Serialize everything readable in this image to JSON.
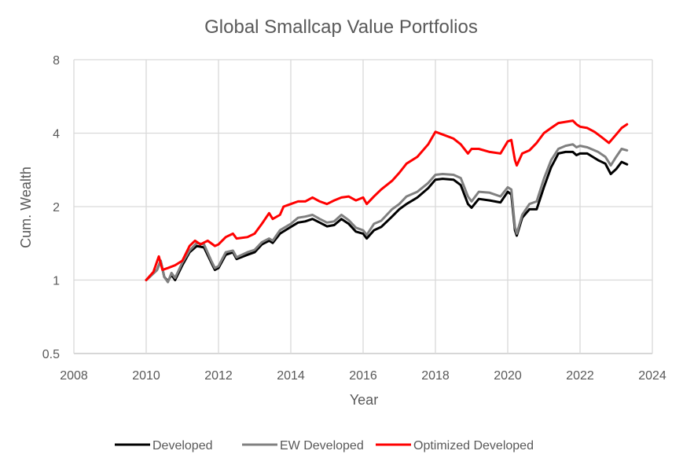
{
  "chart_data": {
    "type": "line",
    "title": "Global Smallcap Value Portfolios",
    "xlabel": "Year",
    "ylabel": "Cum. Wealth",
    "y_scale": "log2",
    "xlim": [
      2008,
      2024
    ],
    "ylim": [
      0.5,
      8
    ],
    "x_ticks": [
      "2008",
      "2010",
      "2012",
      "2014",
      "2016",
      "2018",
      "2020",
      "2022",
      "2024"
    ],
    "y_ticks": [
      "0.5",
      "1",
      "2",
      "4",
      "8"
    ],
    "grid": true,
    "legend_position": "bottom",
    "series": [
      {
        "name": "Developed",
        "color": "#000000",
        "points": [
          [
            2010.0,
            1.0
          ],
          [
            2010.3,
            1.1
          ],
          [
            2010.4,
            1.2
          ],
          [
            2010.5,
            1.03
          ],
          [
            2010.6,
            0.99
          ],
          [
            2010.7,
            1.05
          ],
          [
            2010.8,
            1.0
          ],
          [
            2011.0,
            1.15
          ],
          [
            2011.2,
            1.3
          ],
          [
            2011.4,
            1.38
          ],
          [
            2011.6,
            1.36
          ],
          [
            2011.8,
            1.18
          ],
          [
            2011.9,
            1.1
          ],
          [
            2012.0,
            1.12
          ],
          [
            2012.2,
            1.27
          ],
          [
            2012.4,
            1.3
          ],
          [
            2012.5,
            1.22
          ],
          [
            2012.8,
            1.27
          ],
          [
            2013.0,
            1.3
          ],
          [
            2013.2,
            1.4
          ],
          [
            2013.4,
            1.45
          ],
          [
            2013.5,
            1.42
          ],
          [
            2013.7,
            1.55
          ],
          [
            2014.0,
            1.65
          ],
          [
            2014.2,
            1.72
          ],
          [
            2014.4,
            1.74
          ],
          [
            2014.6,
            1.78
          ],
          [
            2014.8,
            1.72
          ],
          [
            2015.0,
            1.66
          ],
          [
            2015.2,
            1.68
          ],
          [
            2015.4,
            1.78
          ],
          [
            2015.6,
            1.7
          ],
          [
            2015.8,
            1.58
          ],
          [
            2016.0,
            1.55
          ],
          [
            2016.1,
            1.48
          ],
          [
            2016.3,
            1.6
          ],
          [
            2016.5,
            1.65
          ],
          [
            2016.8,
            1.82
          ],
          [
            2017.0,
            1.95
          ],
          [
            2017.2,
            2.05
          ],
          [
            2017.5,
            2.18
          ],
          [
            2017.8,
            2.38
          ],
          [
            2018.0,
            2.58
          ],
          [
            2018.2,
            2.6
          ],
          [
            2018.5,
            2.58
          ],
          [
            2018.7,
            2.45
          ],
          [
            2018.9,
            2.05
          ],
          [
            2019.0,
            1.98
          ],
          [
            2019.2,
            2.15
          ],
          [
            2019.5,
            2.12
          ],
          [
            2019.8,
            2.08
          ],
          [
            2020.0,
            2.3
          ],
          [
            2020.1,
            2.24
          ],
          [
            2020.2,
            1.6
          ],
          [
            2020.25,
            1.52
          ],
          [
            2020.4,
            1.8
          ],
          [
            2020.6,
            1.95
          ],
          [
            2020.8,
            1.95
          ],
          [
            2021.0,
            2.4
          ],
          [
            2021.2,
            2.9
          ],
          [
            2021.4,
            3.3
          ],
          [
            2021.6,
            3.35
          ],
          [
            2021.8,
            3.35
          ],
          [
            2021.9,
            3.25
          ],
          [
            2022.0,
            3.3
          ],
          [
            2022.2,
            3.3
          ],
          [
            2022.5,
            3.1
          ],
          [
            2022.7,
            3.0
          ],
          [
            2022.85,
            2.72
          ],
          [
            2023.0,
            2.85
          ],
          [
            2023.15,
            3.05
          ],
          [
            2023.3,
            2.98
          ]
        ]
      },
      {
        "name": "EW Developed",
        "color": "#808080",
        "points": [
          [
            2010.0,
            1.0
          ],
          [
            2010.3,
            1.1
          ],
          [
            2010.4,
            1.2
          ],
          [
            2010.5,
            1.03
          ],
          [
            2010.6,
            0.98
          ],
          [
            2010.7,
            1.07
          ],
          [
            2010.8,
            1.02
          ],
          [
            2011.0,
            1.18
          ],
          [
            2011.2,
            1.32
          ],
          [
            2011.4,
            1.42
          ],
          [
            2011.6,
            1.4
          ],
          [
            2011.8,
            1.2
          ],
          [
            2011.9,
            1.12
          ],
          [
            2012.0,
            1.14
          ],
          [
            2012.2,
            1.3
          ],
          [
            2012.4,
            1.32
          ],
          [
            2012.5,
            1.24
          ],
          [
            2012.8,
            1.3
          ],
          [
            2013.0,
            1.33
          ],
          [
            2013.2,
            1.43
          ],
          [
            2013.4,
            1.48
          ],
          [
            2013.5,
            1.45
          ],
          [
            2013.7,
            1.6
          ],
          [
            2014.0,
            1.7
          ],
          [
            2014.2,
            1.8
          ],
          [
            2014.4,
            1.82
          ],
          [
            2014.6,
            1.85
          ],
          [
            2014.8,
            1.78
          ],
          [
            2015.0,
            1.72
          ],
          [
            2015.2,
            1.74
          ],
          [
            2015.4,
            1.85
          ],
          [
            2015.6,
            1.76
          ],
          [
            2015.8,
            1.64
          ],
          [
            2016.0,
            1.6
          ],
          [
            2016.1,
            1.53
          ],
          [
            2016.3,
            1.7
          ],
          [
            2016.5,
            1.75
          ],
          [
            2016.8,
            1.95
          ],
          [
            2017.0,
            2.05
          ],
          [
            2017.2,
            2.2
          ],
          [
            2017.5,
            2.3
          ],
          [
            2017.8,
            2.5
          ],
          [
            2018.0,
            2.7
          ],
          [
            2018.2,
            2.72
          ],
          [
            2018.5,
            2.7
          ],
          [
            2018.7,
            2.62
          ],
          [
            2018.9,
            2.2
          ],
          [
            2019.0,
            2.1
          ],
          [
            2019.2,
            2.3
          ],
          [
            2019.5,
            2.28
          ],
          [
            2019.8,
            2.2
          ],
          [
            2020.0,
            2.4
          ],
          [
            2020.1,
            2.35
          ],
          [
            2020.2,
            1.65
          ],
          [
            2020.25,
            1.55
          ],
          [
            2020.4,
            1.85
          ],
          [
            2020.6,
            2.05
          ],
          [
            2020.8,
            2.1
          ],
          [
            2021.0,
            2.6
          ],
          [
            2021.2,
            3.1
          ],
          [
            2021.4,
            3.45
          ],
          [
            2021.6,
            3.55
          ],
          [
            2021.8,
            3.6
          ],
          [
            2021.9,
            3.5
          ],
          [
            2022.0,
            3.55
          ],
          [
            2022.2,
            3.5
          ],
          [
            2022.5,
            3.35
          ],
          [
            2022.7,
            3.2
          ],
          [
            2022.85,
            2.95
          ],
          [
            2023.0,
            3.2
          ],
          [
            2023.15,
            3.45
          ],
          [
            2023.3,
            3.4
          ]
        ]
      },
      {
        "name": "Optimized Developed",
        "color": "#ff0000",
        "points": [
          [
            2010.0,
            1.0
          ],
          [
            2010.2,
            1.08
          ],
          [
            2010.35,
            1.25
          ],
          [
            2010.45,
            1.1
          ],
          [
            2010.6,
            1.12
          ],
          [
            2010.8,
            1.15
          ],
          [
            2011.0,
            1.2
          ],
          [
            2011.2,
            1.38
          ],
          [
            2011.35,
            1.45
          ],
          [
            2011.5,
            1.4
          ],
          [
            2011.7,
            1.45
          ],
          [
            2011.9,
            1.38
          ],
          [
            2012.0,
            1.4
          ],
          [
            2012.2,
            1.5
          ],
          [
            2012.4,
            1.55
          ],
          [
            2012.5,
            1.48
          ],
          [
            2012.8,
            1.5
          ],
          [
            2013.0,
            1.55
          ],
          [
            2013.2,
            1.7
          ],
          [
            2013.4,
            1.88
          ],
          [
            2013.5,
            1.78
          ],
          [
            2013.7,
            1.85
          ],
          [
            2013.8,
            2.0
          ],
          [
            2014.0,
            2.05
          ],
          [
            2014.2,
            2.1
          ],
          [
            2014.4,
            2.1
          ],
          [
            2014.6,
            2.18
          ],
          [
            2014.8,
            2.1
          ],
          [
            2015.0,
            2.05
          ],
          [
            2015.2,
            2.12
          ],
          [
            2015.4,
            2.18
          ],
          [
            2015.6,
            2.2
          ],
          [
            2015.8,
            2.12
          ],
          [
            2016.0,
            2.18
          ],
          [
            2016.1,
            2.05
          ],
          [
            2016.3,
            2.2
          ],
          [
            2016.5,
            2.35
          ],
          [
            2016.8,
            2.55
          ],
          [
            2017.0,
            2.75
          ],
          [
            2017.2,
            3.0
          ],
          [
            2017.5,
            3.2
          ],
          [
            2017.8,
            3.6
          ],
          [
            2018.0,
            4.05
          ],
          [
            2018.2,
            3.95
          ],
          [
            2018.5,
            3.8
          ],
          [
            2018.7,
            3.6
          ],
          [
            2018.9,
            3.3
          ],
          [
            2019.0,
            3.45
          ],
          [
            2019.2,
            3.45
          ],
          [
            2019.5,
            3.35
          ],
          [
            2019.8,
            3.3
          ],
          [
            2020.0,
            3.7
          ],
          [
            2020.1,
            3.75
          ],
          [
            2020.2,
            3.1
          ],
          [
            2020.25,
            2.95
          ],
          [
            2020.4,
            3.3
          ],
          [
            2020.6,
            3.4
          ],
          [
            2020.8,
            3.65
          ],
          [
            2021.0,
            4.0
          ],
          [
            2021.2,
            4.2
          ],
          [
            2021.4,
            4.4
          ],
          [
            2021.6,
            4.45
          ],
          [
            2021.8,
            4.5
          ],
          [
            2021.9,
            4.35
          ],
          [
            2022.0,
            4.25
          ],
          [
            2022.2,
            4.2
          ],
          [
            2022.4,
            4.05
          ],
          [
            2022.6,
            3.85
          ],
          [
            2022.8,
            3.65
          ],
          [
            2023.0,
            3.95
          ],
          [
            2023.15,
            4.2
          ],
          [
            2023.3,
            4.35
          ]
        ]
      }
    ]
  }
}
